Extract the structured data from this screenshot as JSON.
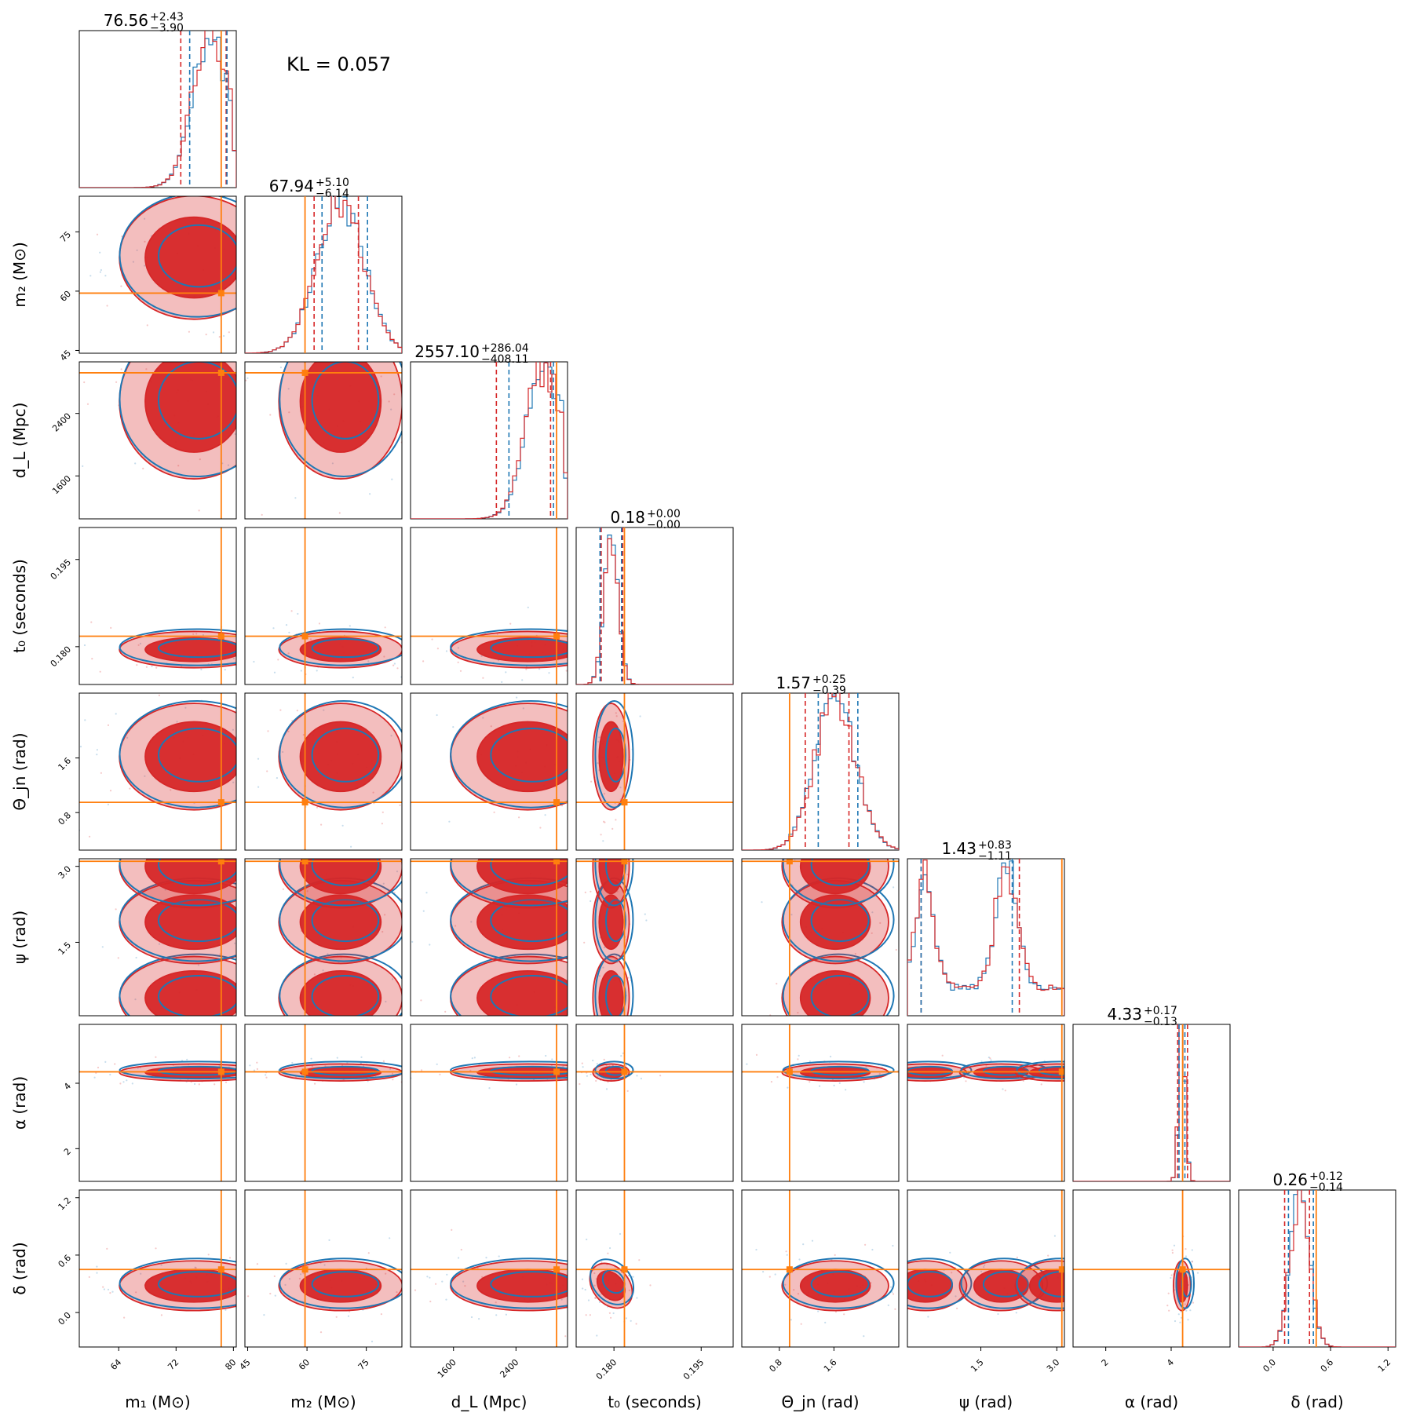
{
  "chart_data": {
    "type": "corner",
    "annotation": "KL = 0.057",
    "colors": {
      "a": "#d62728",
      "b": "#1f77b4",
      "truth": "#ff7f0e"
    },
    "params": [
      {
        "key": "m1",
        "label": "m₁ (M⊙)",
        "range": [
          58.5,
          80.4
        ],
        "ticks": [
          64,
          72,
          80
        ],
        "tick_labels": [
          "64",
          "72",
          "80"
        ],
        "truth": 78.3,
        "median": "76.56",
        "plus": "+2.43",
        "minus": "−3.90",
        "qa": [
          72.66,
          78.99
        ],
        "qb": [
          73.9,
          79.1
        ],
        "mean": 74.5,
        "sd": 4.0,
        "skew": 1
      },
      {
        "key": "m2",
        "label": "m₂ (M⊙)",
        "range": [
          44.3,
          84.0
        ],
        "ticks": [
          45,
          60,
          75
        ],
        "tick_labels": [
          "45",
          "60",
          "75"
        ],
        "truth": 59.5,
        "median": "67.94",
        "plus": "+5.10",
        "minus": "−6.14",
        "qa": [
          61.8,
          73.0
        ],
        "qb": [
          63.8,
          75.3
        ],
        "mean": 68.5,
        "sd": 6.0,
        "skew": 0
      },
      {
        "key": "dL",
        "label": "d_L (Mpc)",
        "range": [
          1050,
          3060
        ],
        "ticks": [
          1600,
          2400
        ],
        "tick_labels": [
          "1600",
          "2400"
        ],
        "truth": 2920,
        "median": "2557.10",
        "plus": "+286.04",
        "minus": "−408.11",
        "qa": [
          2149,
          2843
        ],
        "qb": [
          2310,
          2880
        ],
        "mean": 2550,
        "sd": 380,
        "skew": 1
      },
      {
        "key": "t0",
        "label": "t₀ (seconds)",
        "range": [
          0.1735,
          0.2005
        ],
        "ticks": [
          0.18,
          0.195
        ],
        "tick_labels": [
          "0.180",
          "0.195"
        ],
        "truth": 0.1818,
        "median": "0.18",
        "plus": "+0.00",
        "minus": "−0.00",
        "qa": [
          0.1778,
          0.1815
        ],
        "qb": [
          0.1776,
          0.1813
        ],
        "mean": 0.1795,
        "sd": 0.0012,
        "skew": 0
      },
      {
        "key": "thetajn",
        "label": "Θ_jn (rad)",
        "range": [
          0.25,
          2.55
        ],
        "ticks": [
          0.8,
          1.6
        ],
        "tick_labels": [
          "0.8",
          "1.6"
        ],
        "truth": 0.95,
        "median": "1.57",
        "plus": "+0.25",
        "minus": "−0.39",
        "qa": [
          1.18,
          1.82
        ],
        "qb": [
          1.37,
          1.95
        ],
        "mean": 1.62,
        "sd": 0.3,
        "skew": 0
      },
      {
        "key": "psi",
        "label": "ψ (rad)",
        "range": [
          0.05,
          3.15
        ],
        "ticks": [
          1.5,
          3.0
        ],
        "tick_labels": [
          "1.5",
          "3.0"
        ],
        "truth": 3.1,
        "median": "1.43",
        "plus": "+0.83",
        "minus": "−1.11",
        "qa": [
          0.32,
          2.26
        ],
        "qb": [
          0.32,
          2.12
        ],
        "mean": 1.6,
        "sd": 0.9,
        "skew": 0
      },
      {
        "key": "alpha",
        "label": "α (rad)",
        "range": [
          1.0,
          5.8
        ],
        "ticks": [
          2,
          4
        ],
        "tick_labels": [
          "2",
          "4"
        ],
        "truth": 4.35,
        "median": "4.33",
        "plus": "+0.17",
        "minus": "−0.13",
        "qa": [
          4.2,
          4.5
        ],
        "qb": [
          4.24,
          4.42
        ],
        "mean": 4.33,
        "sd": 0.1,
        "skew": 0
      },
      {
        "key": "delta",
        "label": "δ (rad)",
        "range": [
          -0.36,
          1.28
        ],
        "ticks": [
          0.0,
          0.6,
          1.2
        ],
        "tick_labels": [
          "0.0",
          "0.6",
          "1.2"
        ],
        "truth": 0.45,
        "median": "0.26",
        "plus": "+0.12",
        "minus": "−0.14",
        "qa": [
          0.12,
          0.38
        ],
        "qb": [
          0.16,
          0.42
        ],
        "mean": 0.28,
        "sd": 0.1,
        "skew": 0
      }
    ]
  }
}
